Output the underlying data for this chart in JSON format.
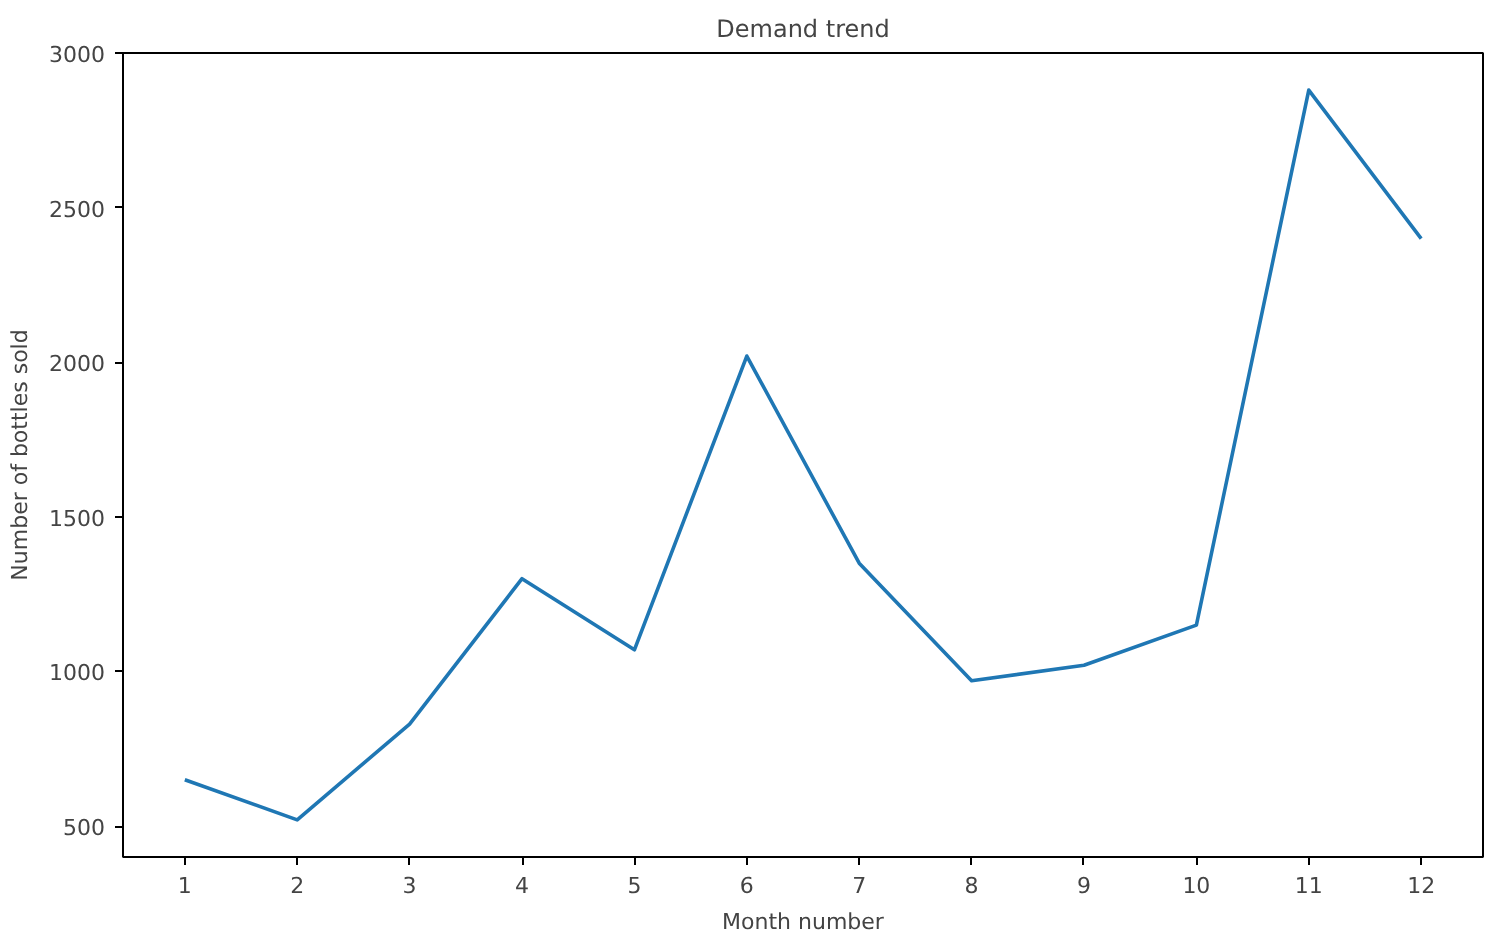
{
  "chart_data": {
    "type": "line",
    "title": "Demand trend",
    "xlabel": "Month number",
    "ylabel": "Number of bottles sold",
    "x": [
      1,
      2,
      3,
      4,
      5,
      6,
      7,
      8,
      9,
      10,
      11,
      12
    ],
    "series": [
      {
        "color": "#1f77b4",
        "values": [
          650,
          520,
          830,
          1300,
          1070,
          2020,
          1350,
          970,
          1020,
          1150,
          2880,
          2400
        ]
      }
    ],
    "xlim": [
      0.45,
      12.55
    ],
    "ylim": [
      400,
      3000
    ],
    "xticks": [
      1,
      2,
      3,
      4,
      5,
      6,
      7,
      8,
      9,
      10,
      11,
      12
    ],
    "yticks": [
      500,
      1000,
      1500,
      2000,
      2500,
      3000
    ],
    "grid": false,
    "marker": "none",
    "line_style": "solid"
  }
}
